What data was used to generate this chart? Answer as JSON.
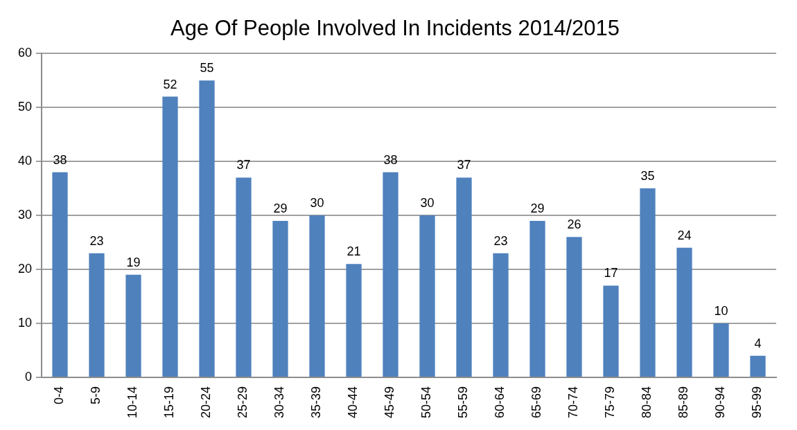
{
  "chart_data": {
    "type": "bar",
    "title": "Age Of People Involved In Incidents 2014/2015",
    "categories": [
      "0-4",
      "5-9",
      "10-14",
      "15-19",
      "20-24",
      "25-29",
      "30-34",
      "35-39",
      "40-44",
      "45-49",
      "50-54",
      "55-59",
      "60-64",
      "65-69",
      "70-74",
      "75-79",
      "80-84",
      "85-89",
      "90-94",
      "95-99"
    ],
    "values": [
      38,
      23,
      19,
      52,
      55,
      37,
      29,
      30,
      21,
      38,
      30,
      37,
      23,
      29,
      26,
      17,
      35,
      24,
      10,
      4
    ],
    "color": "#4f81bd",
    "ylim": [
      0,
      60
    ],
    "yticks": [
      0,
      10,
      20,
      30,
      40,
      50,
      60
    ],
    "grid": "y",
    "data_labels": true
  }
}
